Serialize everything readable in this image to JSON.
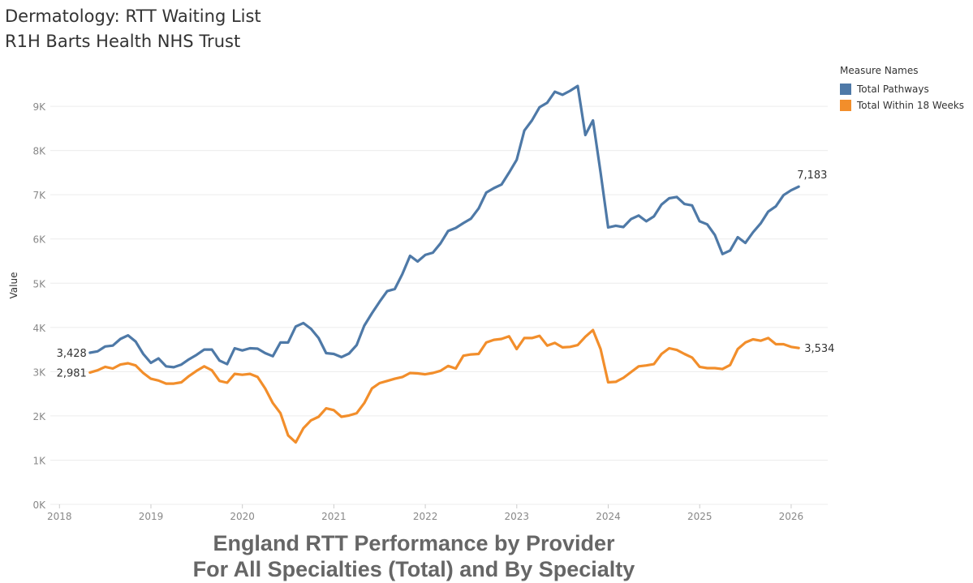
{
  "title_line1": "Dermatology: RTT Waiting List",
  "title_line2": "R1H Barts Health NHS Trust",
  "footer_line1": "England RTT Performance by Provider",
  "footer_line2": "For All Specialties (Total) and By Specialty",
  "legend": {
    "title": "Measure Names",
    "items": [
      {
        "label": "Total Pathways",
        "color": "#4e79a7"
      },
      {
        "label": "Total Within 18 Weeks",
        "color": "#f28e2b"
      }
    ]
  },
  "chart_data": {
    "type": "line",
    "title": "Dermatology: RTT Waiting List",
    "subtitle": "R1H Barts Health NHS Trust",
    "xlabel": "",
    "ylabel": "Value",
    "xlim": [
      2017.9,
      2026.4
    ],
    "ylim": [
      0,
      9900
    ],
    "x_ticks": [
      2018,
      2019,
      2020,
      2021,
      2022,
      2023,
      2024,
      2025,
      2026
    ],
    "y_ticks": [
      0,
      1000,
      2000,
      3000,
      4000,
      5000,
      6000,
      7000,
      8000,
      9000
    ],
    "y_tick_labels": [
      "0K",
      "1K",
      "2K",
      "3K",
      "4K",
      "5K",
      "6K",
      "7K",
      "8K",
      "9K"
    ],
    "grid": true,
    "legend_position": "top-right",
    "x_start": 2018.333,
    "x_step": 0.08333,
    "series": [
      {
        "name": "Total Pathways",
        "color": "#4e79a7",
        "start_label": "3,428",
        "end_label": "7,183",
        "values": [
          3428,
          3460,
          3570,
          3590,
          3740,
          3820,
          3680,
          3400,
          3200,
          3300,
          3120,
          3100,
          3160,
          3280,
          3380,
          3500,
          3500,
          3250,
          3170,
          3530,
          3480,
          3530,
          3520,
          3420,
          3350,
          3660,
          3660,
          4020,
          4100,
          3970,
          3760,
          3420,
          3400,
          3330,
          3410,
          3600,
          4040,
          4320,
          4580,
          4820,
          4870,
          5210,
          5620,
          5490,
          5640,
          5690,
          5900,
          6180,
          6250,
          6360,
          6460,
          6690,
          7050,
          7150,
          7230,
          7500,
          7790,
          8450,
          8680,
          8980,
          9080,
          9330,
          9260,
          9350,
          9460,
          8350,
          8680,
          7500,
          6260,
          6300,
          6270,
          6450,
          6530,
          6400,
          6510,
          6780,
          6920,
          6950,
          6790,
          6760,
          6400,
          6330,
          6090,
          5660,
          5740,
          6040,
          5910,
          6150,
          6350,
          6620,
          6740,
          6990,
          7100,
          7183
        ]
      },
      {
        "name": "Total Within 18 Weeks",
        "color": "#f28e2b",
        "start_label": "2,981",
        "end_label": "3,534",
        "values": [
          2981,
          3030,
          3110,
          3070,
          3160,
          3190,
          3140,
          2970,
          2840,
          2800,
          2730,
          2730,
          2760,
          2900,
          3020,
          3120,
          3030,
          2790,
          2750,
          2950,
          2930,
          2950,
          2880,
          2620,
          2290,
          2060,
          1560,
          1400,
          1720,
          1900,
          1980,
          2170,
          2130,
          1980,
          2010,
          2060,
          2290,
          2620,
          2740,
          2790,
          2840,
          2880,
          2970,
          2960,
          2940,
          2970,
          3020,
          3130,
          3070,
          3360,
          3390,
          3400,
          3660,
          3720,
          3740,
          3800,
          3510,
          3760,
          3760,
          3810,
          3590,
          3650,
          3550,
          3560,
          3600,
          3790,
          3940,
          3510,
          2760,
          2770,
          2860,
          2990,
          3120,
          3140,
          3170,
          3400,
          3530,
          3490,
          3400,
          3320,
          3110,
          3080,
          3080,
          3060,
          3150,
          3510,
          3660,
          3730,
          3700,
          3760,
          3620,
          3620,
          3560,
          3534
        ]
      }
    ]
  }
}
